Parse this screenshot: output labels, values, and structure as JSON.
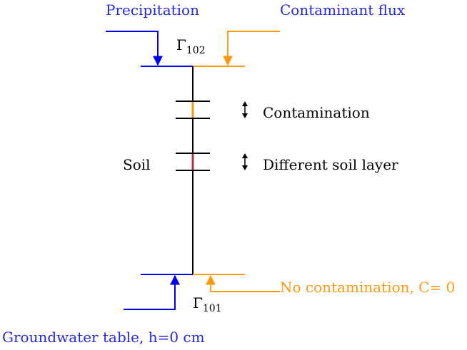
{
  "labels": {
    "precipitation": "Precipitation",
    "contaminant_flux": "Contaminant flux",
    "gamma_top_symbol": "Γ",
    "gamma_top_sub": "102",
    "contamination": "Contamination",
    "different_soil_layer": "Different soil layer",
    "soil": "Soil",
    "no_contamination": "No contamination, C= 0",
    "gamma_bottom_symbol": "Γ",
    "gamma_bottom_sub": "101",
    "groundwater_table": "Groundwater table, h=0 cm"
  },
  "colors": {
    "water": "#0000ee",
    "contaminant": "#ff9a10",
    "soil_column": "#000000",
    "soil_layer": "#b0304a",
    "water_text": "#2828e0",
    "contaminant_text": "#ff9a10"
  }
}
